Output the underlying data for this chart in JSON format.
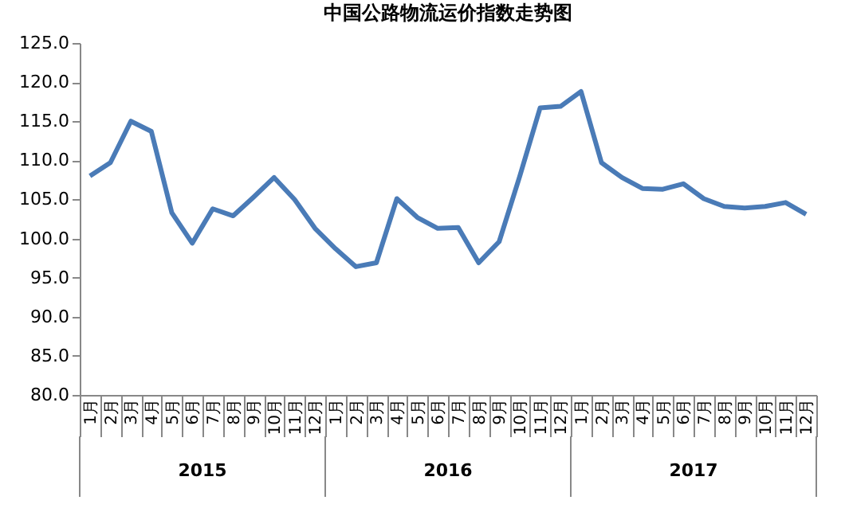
{
  "chart_data": {
    "type": "line",
    "title": "中国公路物流运价指数走势图",
    "categories": [
      "1月",
      "2月",
      "3月",
      "4月",
      "5月",
      "6月",
      "7月",
      "8月",
      "9月",
      "10月",
      "11月",
      "12月",
      "1月",
      "2月",
      "3月",
      "4月",
      "5月",
      "6月",
      "7月",
      "8月",
      "9月",
      "10月",
      "11月",
      "12月",
      "1月",
      "2月",
      "3月",
      "4月",
      "5月",
      "6月",
      "7月",
      "8月",
      "9月",
      "10月",
      "11月",
      "12月"
    ],
    "series": [
      {
        "color": "#4a7bb7",
        "values": [
          108.0,
          109.7,
          115.0,
          113.7,
          103.3,
          99.4,
          103.8,
          102.9,
          105.3,
          107.8,
          105.0,
          101.3,
          98.7,
          96.4,
          96.9,
          105.1,
          102.7,
          101.3,
          101.4,
          96.9,
          99.6,
          107.9,
          116.7,
          116.9,
          118.8,
          109.7,
          107.8,
          106.4,
          106.3,
          107.0,
          105.1,
          104.1,
          103.9,
          104.1,
          104.6,
          103.1
        ]
      }
    ],
    "annotations": [
      "2015",
      "2016",
      "2017"
    ],
    "ylim": [
      80,
      125
    ],
    "yticks": [
      {
        "value": 80,
        "label": "80.0"
      },
      {
        "value": 85,
        "label": "85.0"
      },
      {
        "value": 90,
        "label": "90.0"
      },
      {
        "value": 95,
        "label": "95.0"
      },
      {
        "value": 100,
        "label": "100.0"
      },
      {
        "value": 105,
        "label": "105.0"
      },
      {
        "value": 110,
        "label": "110.0"
      },
      {
        "value": 115,
        "label": "115.0"
      },
      {
        "value": 120,
        "label": "120.0"
      },
      {
        "value": 125,
        "label": "125.0"
      }
    ],
    "grid": false,
    "marker": "none",
    "line_style": "solid"
  }
}
